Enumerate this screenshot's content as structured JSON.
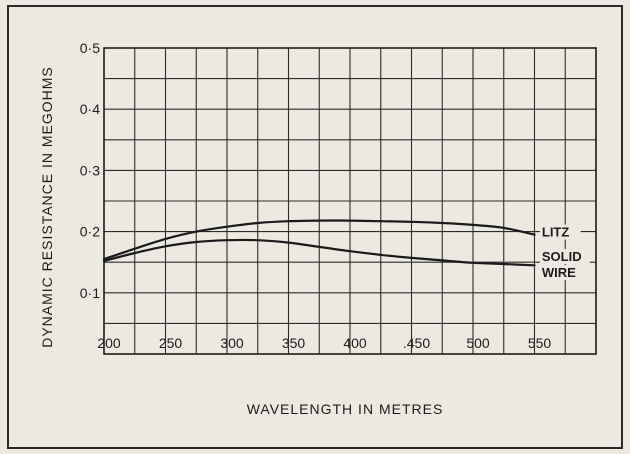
{
  "chart_data": {
    "type": "line",
    "title": "",
    "xlabel": "WAVELENGTH IN METRES",
    "ylabel": "DYNAMIC RESISTANCE IN MEGOHMS",
    "xlim": [
      200,
      600
    ],
    "ylim": [
      0,
      0.5
    ],
    "x_tick_labels": [
      "200",
      "250",
      "300",
      "350",
      "400",
      ".450",
      "500",
      "550"
    ],
    "x_tick_values": [
      200,
      250,
      300,
      350,
      400,
      450,
      500,
      550
    ],
    "y_tick_labels": [
      "0·1",
      "0·2",
      "0·3",
      "0·4",
      "0·5"
    ],
    "y_tick_values": [
      0.1,
      0.2,
      0.3,
      0.4,
      0.5
    ],
    "x_grid_step": 25,
    "y_grid_step": 0.05,
    "grid": true,
    "series": [
      {
        "name": "LITZ",
        "label_lines": [
          "LITZ"
        ],
        "x": [
          200,
          225,
          250,
          275,
          300,
          325,
          350,
          375,
          400,
          425,
          450,
          475,
          500,
          525,
          550
        ],
        "y": [
          0.155,
          0.172,
          0.188,
          0.2,
          0.208,
          0.214,
          0.217,
          0.218,
          0.218,
          0.217,
          0.216,
          0.214,
          0.211,
          0.206,
          0.195
        ]
      },
      {
        "name": "SOLID WIRE",
        "label_lines": [
          "SOLID",
          "WIRE"
        ],
        "x": [
          200,
          225,
          250,
          275,
          300,
          325,
          350,
          375,
          400,
          425,
          450,
          475,
          500,
          525,
          550
        ],
        "y": [
          0.152,
          0.165,
          0.176,
          0.183,
          0.186,
          0.186,
          0.182,
          0.175,
          0.168,
          0.162,
          0.157,
          0.153,
          0.149,
          0.147,
          0.145
        ]
      }
    ]
  }
}
